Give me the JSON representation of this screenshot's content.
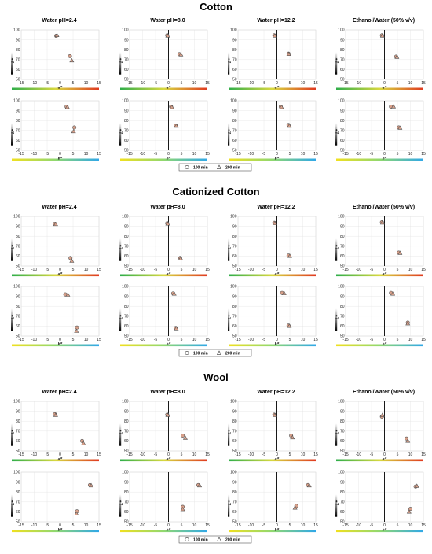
{
  "figure": {
    "series_names": [
      "100 min",
      "200 min"
    ],
    "column_titles": [
      "Water pH=2.4",
      "Water pH=8.0",
      "Water pH=12.2",
      "Ethanol/Water (50% v/v)"
    ],
    "marker_fill": "#d8a08a",
    "marker_stroke": "#555555",
    "gradient_a": [
      "#2fae4a",
      "#d8d840",
      "#e03a20"
    ],
    "gradient_b": [
      "#f0e020",
      "#90d870",
      "#30a8e8"
    ],
    "gradient_L": [
      "#000000",
      "#ffffff"
    ]
  },
  "chart_data": [
    {
      "section": "Cotton",
      "column": "Water pH=2.4",
      "type": "scatter",
      "xlabel": "a*",
      "ylabel": "L*",
      "xlim": [
        -15,
        15
      ],
      "ylim": [
        50,
        100
      ],
      "grid": true,
      "series": [
        {
          "name": "100 min",
          "points": [
            [
              -1.5,
              94
            ],
            [
              3.8,
              73.5
            ]
          ]
        },
        {
          "name": "200 min",
          "points": [
            [
              -1.2,
              94.5
            ],
            [
              4.5,
              69
            ]
          ]
        }
      ]
    },
    {
      "section": "Cotton",
      "column": "Water pH=8.0",
      "type": "scatter",
      "xlabel": "a*",
      "ylabel": "L*",
      "xlim": [
        -15,
        15
      ],
      "ylim": [
        50,
        100
      ],
      "grid": true,
      "series": [
        {
          "name": "100 min",
          "points": [
            [
              -0.5,
              94.5
            ],
            [
              4.2,
              75.5
            ]
          ]
        },
        {
          "name": "200 min",
          "points": [
            [
              -0.3,
              94
            ],
            [
              4.8,
              75
            ]
          ]
        }
      ]
    },
    {
      "section": "Cotton",
      "column": "Water pH=12.2",
      "type": "scatter",
      "xlabel": "a*",
      "ylabel": "L*",
      "xlim": [
        -15,
        15
      ],
      "ylim": [
        50,
        100
      ],
      "grid": true,
      "series": [
        {
          "name": "100 min",
          "points": [
            [
              -1.0,
              94.5
            ],
            [
              4.5,
              76
            ]
          ]
        },
        {
          "name": "200 min",
          "points": [
            [
              -0.8,
              94
            ],
            [
              4.6,
              75.5
            ]
          ]
        }
      ]
    },
    {
      "section": "Cotton",
      "column": "Ethanol/Water (50% v/v)",
      "type": "scatter",
      "xlabel": "a*",
      "ylabel": "L*",
      "xlim": [
        -15,
        15
      ],
      "ylim": [
        50,
        100
      ],
      "grid": true,
      "series": [
        {
          "name": "100 min",
          "points": [
            [
              -1.0,
              94.5
            ],
            [
              4.5,
              73
            ]
          ]
        },
        {
          "name": "200 min",
          "points": [
            [
              -0.8,
              94
            ],
            [
              4.8,
              72.5
            ]
          ]
        }
      ]
    },
    {
      "section": "Cotton",
      "column": "Water pH=2.4",
      "type": "scatter",
      "xlabel": "b*",
      "ylabel": "L*",
      "xlim": [
        -15,
        15
      ],
      "ylim": [
        50,
        100
      ],
      "grid": true,
      "series": [
        {
          "name": "100 min",
          "points": [
            [
              2.5,
              94
            ],
            [
              5.5,
              73
            ]
          ]
        },
        {
          "name": "200 min",
          "points": [
            [
              2.8,
              93.5
            ],
            [
              5.2,
              69
            ]
          ]
        }
      ]
    },
    {
      "section": "Cotton",
      "column": "Water pH=8.0",
      "type": "scatter",
      "xlabel": "b*",
      "ylabel": "L*",
      "xlim": [
        -15,
        15
      ],
      "ylim": [
        50,
        100
      ],
      "grid": true,
      "series": [
        {
          "name": "100 min",
          "points": [
            [
              1.0,
              94
            ],
            [
              2.8,
              75
            ]
          ]
        },
        {
          "name": "200 min",
          "points": [
            [
              1.3,
              93.5
            ],
            [
              3.0,
              74.5
            ]
          ]
        }
      ]
    },
    {
      "section": "Cotton",
      "column": "Water pH=12.2",
      "type": "scatter",
      "xlabel": "b*",
      "ylabel": "L*",
      "xlim": [
        -15,
        15
      ],
      "ylim": [
        50,
        100
      ],
      "grid": true,
      "series": [
        {
          "name": "100 min",
          "points": [
            [
              1.5,
              94
            ],
            [
              4.5,
              75.5
            ]
          ]
        },
        {
          "name": "200 min",
          "points": [
            [
              1.8,
              93.5
            ],
            [
              4.8,
              74.5
            ]
          ]
        }
      ]
    },
    {
      "section": "Cotton",
      "column": "Ethanol/Water (50% v/v)",
      "type": "scatter",
      "xlabel": "b*",
      "ylabel": "L*",
      "xlim": [
        -15,
        15
      ],
      "ylim": [
        50,
        100
      ],
      "grid": true,
      "series": [
        {
          "name": "100 min",
          "points": [
            [
              2.5,
              94
            ],
            [
              5.5,
              73
            ]
          ]
        },
        {
          "name": "200 min",
          "points": [
            [
              3.5,
              94
            ],
            [
              6.0,
              72.5
            ]
          ]
        }
      ]
    },
    {
      "section": "Cationized Cotton",
      "column": "Water pH=2.4",
      "type": "scatter",
      "xlabel": "a*",
      "ylabel": "L*",
      "xlim": [
        -15,
        15
      ],
      "ylim": [
        50,
        100
      ],
      "grid": true,
      "series": [
        {
          "name": "100 min",
          "points": [
            [
              -2.0,
              92.5
            ],
            [
              4.0,
              58
            ]
          ]
        },
        {
          "name": "200 min",
          "points": [
            [
              -1.7,
              92
            ],
            [
              4.5,
              55
            ]
          ]
        }
      ]
    },
    {
      "section": "Cationized Cotton",
      "column": "Water pH=8.0",
      "type": "scatter",
      "xlabel": "a*",
      "ylabel": "L*",
      "xlim": [
        -15,
        15
      ],
      "ylim": [
        50,
        100
      ],
      "grid": true,
      "series": [
        {
          "name": "100 min",
          "points": [
            [
              -0.5,
              93
            ],
            [
              4.5,
              58
            ]
          ]
        },
        {
          "name": "200 min",
          "points": [
            [
              -0.3,
              92.5
            ],
            [
              4.7,
              57.5
            ]
          ]
        }
      ]
    },
    {
      "section": "Cationized Cotton",
      "column": "Water pH=12.2",
      "type": "scatter",
      "xlabel": "a*",
      "ylabel": "L*",
      "xlim": [
        -15,
        15
      ],
      "ylim": [
        50,
        100
      ],
      "grid": true,
      "series": [
        {
          "name": "100 min",
          "points": [
            [
              -1.0,
              93.5
            ],
            [
              4.5,
              60.5
            ]
          ]
        },
        {
          "name": "200 min",
          "points": [
            [
              -0.8,
              93
            ],
            [
              5.0,
              60
            ]
          ]
        }
      ]
    },
    {
      "section": "Cationized Cotton",
      "column": "Ethanol/Water (50% v/v)",
      "type": "scatter",
      "xlabel": "a*",
      "ylabel": "L*",
      "xlim": [
        -15,
        15
      ],
      "ylim": [
        50,
        100
      ],
      "grid": true,
      "series": [
        {
          "name": "100 min",
          "points": [
            [
              -1.0,
              94
            ],
            [
              5.5,
              63.5
            ]
          ]
        },
        {
          "name": "200 min",
          "points": [
            [
              -0.8,
              93.5
            ],
            [
              6.0,
              63
            ]
          ]
        }
      ]
    },
    {
      "section": "Cationized Cotton",
      "column": "Water pH=2.4",
      "type": "scatter",
      "xlabel": "b*",
      "ylabel": "L*",
      "xlim": [
        -15,
        15
      ],
      "ylim": [
        50,
        100
      ],
      "grid": true,
      "series": [
        {
          "name": "100 min",
          "points": [
            [
              2.0,
              92
            ],
            [
              6.5,
              58.5
            ]
          ]
        },
        {
          "name": "200 min",
          "points": [
            [
              3.0,
              91.5
            ],
            [
              6.3,
              55
            ]
          ]
        }
      ]
    },
    {
      "section": "Cationized Cotton",
      "column": "Water pH=8.0",
      "type": "scatter",
      "xlabel": "b*",
      "ylabel": "L*",
      "xlim": [
        -15,
        15
      ],
      "ylim": [
        50,
        100
      ],
      "grid": true,
      "series": [
        {
          "name": "100 min",
          "points": [
            [
              1.8,
              93
            ],
            [
              2.8,
              58
            ]
          ]
        },
        {
          "name": "200 min",
          "points": [
            [
              2.2,
              92.5
            ],
            [
              3.0,
              57.5
            ]
          ]
        }
      ]
    },
    {
      "section": "Cationized Cotton",
      "column": "Water pH=12.2",
      "type": "scatter",
      "xlabel": "b*",
      "ylabel": "L*",
      "xlim": [
        -15,
        15
      ],
      "ylim": [
        50,
        100
      ],
      "grid": true,
      "series": [
        {
          "name": "100 min",
          "points": [
            [
              2.0,
              93.5
            ],
            [
              4.5,
              60.5
            ]
          ]
        },
        {
          "name": "200 min",
          "points": [
            [
              2.8,
              93
            ],
            [
              4.8,
              60
            ]
          ]
        }
      ]
    },
    {
      "section": "Cationized Cotton",
      "column": "Ethanol/Water (50% v/v)",
      "type": "scatter",
      "xlabel": "b*",
      "ylabel": "L*",
      "xlim": [
        -15,
        15
      ],
      "ylim": [
        50,
        100
      ],
      "grid": true,
      "series": [
        {
          "name": "100 min",
          "points": [
            [
              2.5,
              93.5
            ],
            [
              9.0,
              63.5
            ]
          ]
        },
        {
          "name": "200 min",
          "points": [
            [
              3.2,
              92.5
            ],
            [
              9.0,
              62.5
            ]
          ]
        }
      ]
    },
    {
      "section": "Wool",
      "column": "Water pH=2.4",
      "type": "scatter",
      "xlabel": "a*",
      "ylabel": "L*",
      "xlim": [
        -15,
        15
      ],
      "ylim": [
        50,
        100
      ],
      "grid": true,
      "series": [
        {
          "name": "100 min",
          "points": [
            [
              -2.0,
              87
            ],
            [
              8.5,
              60
            ]
          ]
        },
        {
          "name": "200 min",
          "points": [
            [
              -1.7,
              86
            ],
            [
              9.0,
              57.5
            ]
          ]
        }
      ]
    },
    {
      "section": "Wool",
      "column": "Water pH=8.0",
      "type": "scatter",
      "xlabel": "a*",
      "ylabel": "L*",
      "xlim": [
        -15,
        15
      ],
      "ylim": [
        50,
        100
      ],
      "grid": true,
      "series": [
        {
          "name": "100 min",
          "points": [
            [
              -0.5,
              86.5
            ],
            [
              5.5,
              65.5
            ]
          ]
        },
        {
          "name": "200 min",
          "points": [
            [
              -0.3,
              86
            ],
            [
              6.5,
              63
            ]
          ]
        }
      ]
    },
    {
      "section": "Wool",
      "column": "Water pH=12.2",
      "type": "scatter",
      "xlabel": "a*",
      "ylabel": "L*",
      "xlim": [
        -15,
        15
      ],
      "ylim": [
        50,
        100
      ],
      "grid": true,
      "series": [
        {
          "name": "100 min",
          "points": [
            [
              -1.0,
              86.5
            ],
            [
              5.5,
              65.5
            ]
          ]
        },
        {
          "name": "200 min",
          "points": [
            [
              -0.8,
              86
            ],
            [
              6.0,
              63.5
            ]
          ]
        }
      ]
    },
    {
      "section": "Wool",
      "column": "Ethanol/Water (50% v/v)",
      "type": "scatter",
      "xlabel": "a*",
      "ylabel": "L*",
      "xlim": [
        -15,
        15
      ],
      "ylim": [
        50,
        100
      ],
      "grid": true,
      "series": [
        {
          "name": "100 min",
          "points": [
            [
              -1.0,
              84.5
            ],
            [
              8.5,
              62.5
            ]
          ]
        },
        {
          "name": "200 min",
          "points": [
            [
              -0.8,
              86
            ],
            [
              9.0,
              60
            ]
          ]
        }
      ]
    },
    {
      "section": "Wool",
      "column": "Water pH=2.4",
      "type": "scatter",
      "xlabel": "b*",
      "ylabel": "L*",
      "xlim": [
        -15,
        15
      ],
      "ylim": [
        50,
        100
      ],
      "grid": true,
      "series": [
        {
          "name": "100 min",
          "points": [
            [
              11.5,
              87
            ],
            [
              6.5,
              60.5
            ]
          ]
        },
        {
          "name": "200 min",
          "points": [
            [
              12.0,
              86.5
            ],
            [
              6.3,
              58
            ]
          ]
        }
      ]
    },
    {
      "section": "Wool",
      "column": "Water pH=8.0",
      "type": "scatter",
      "xlabel": "b*",
      "ylabel": "L*",
      "xlim": [
        -15,
        15
      ],
      "ylim": [
        50,
        100
      ],
      "grid": true,
      "series": [
        {
          "name": "100 min",
          "points": [
            [
              11.5,
              87
            ],
            [
              5.5,
              65
            ]
          ]
        },
        {
          "name": "200 min",
          "points": [
            [
              12.0,
              86.5
            ],
            [
              5.5,
              62.5
            ]
          ]
        }
      ]
    },
    {
      "section": "Wool",
      "column": "Water pH=12.2",
      "type": "scatter",
      "xlabel": "b*",
      "ylabel": "L*",
      "xlim": [
        -15,
        15
      ],
      "ylim": [
        50,
        100
      ],
      "grid": true,
      "series": [
        {
          "name": "100 min",
          "points": [
            [
              12.0,
              87
            ],
            [
              7.5,
              66
            ]
          ]
        },
        {
          "name": "200 min",
          "points": [
            [
              12.5,
              86.5
            ],
            [
              7.0,
              64
            ]
          ]
        }
      ]
    },
    {
      "section": "Wool",
      "column": "Ethanol/Water (50% v/v)",
      "type": "scatter",
      "xlabel": "b*",
      "ylabel": "L*",
      "xlim": [
        -15,
        15
      ],
      "ylim": [
        50,
        100
      ],
      "grid": true,
      "series": [
        {
          "name": "100 min",
          "points": [
            [
              12.0,
              85.5
            ],
            [
              10.0,
              63
            ]
          ]
        },
        {
          "name": "200 min",
          "points": [
            [
              12.5,
              86
            ],
            [
              9.5,
              60
            ]
          ]
        }
      ]
    }
  ]
}
